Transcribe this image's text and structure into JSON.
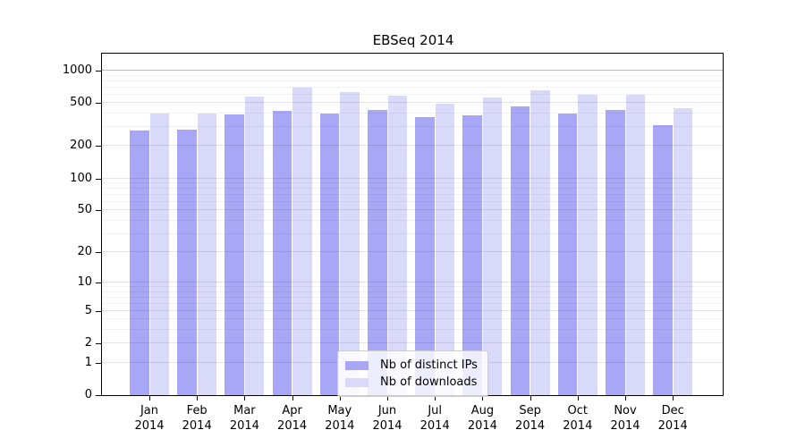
{
  "chart_data": {
    "type": "bar",
    "title": "EBSeq 2014",
    "categories": [
      "Jan 2014",
      "Feb 2014",
      "Mar 2014",
      "Apr 2014",
      "May 2014",
      "Jun 2014",
      "Jul 2014",
      "Aug 2014",
      "Sep 2014",
      "Oct 2014",
      "Nov 2014",
      "Dec 2014"
    ],
    "series": [
      {
        "name": "Nb of distinct IPs",
        "color": "#a7a7f6",
        "values": [
          280,
          285,
          390,
          425,
          398,
          430,
          370,
          385,
          465,
          400,
          430,
          313
        ]
      },
      {
        "name": "Nb of downloads",
        "color": "#d9d9f9",
        "values": [
          400,
          400,
          575,
          695,
          630,
          585,
          495,
          565,
          655,
          600,
          595,
          450
        ]
      }
    ],
    "xlabel": "",
    "ylabel": "",
    "y_scale": "log10(value+1)",
    "y_ticks": [
      0,
      1,
      2,
      5,
      10,
      20,
      50,
      100,
      200,
      500,
      1000
    ],
    "y_range": [
      0,
      1460
    ],
    "grid": "horizontal major+minor, drawn over bars",
    "legend_position": "bottom-center",
    "colors": {
      "axis": "#000000",
      "grid_decade": "rgba(0,0,0,0.27)",
      "grid_labeled": "rgba(0,0,0,0.10)",
      "grid_minor": "rgba(0,0,0,0.055)",
      "legend_border": "#cccccc"
    }
  }
}
